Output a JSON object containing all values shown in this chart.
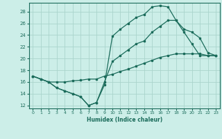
{
  "xlabel": "Humidex (Indice chaleur)",
  "bg_color": "#cceee8",
  "grid_color": "#aad4cc",
  "line_color": "#1a6b5a",
  "xlim": [
    -0.5,
    23.5
  ],
  "ylim": [
    11.5,
    29.5
  ],
  "xticks": [
    0,
    1,
    2,
    3,
    4,
    5,
    6,
    7,
    8,
    9,
    10,
    11,
    12,
    13,
    14,
    15,
    16,
    17,
    18,
    19,
    20,
    21,
    22,
    23
  ],
  "yticks": [
    12,
    14,
    16,
    18,
    20,
    22,
    24,
    26,
    28
  ],
  "line1_x": [
    0,
    1,
    2,
    3,
    4,
    5,
    6,
    7,
    8,
    9,
    10,
    11,
    12,
    13,
    14,
    15,
    16,
    17,
    18,
    19,
    20,
    21,
    22,
    23
  ],
  "line1_y": [
    17.0,
    16.5,
    16.0,
    15.0,
    14.5,
    14.0,
    13.5,
    12.0,
    12.5,
    15.5,
    23.8,
    25.0,
    26.0,
    27.0,
    27.5,
    28.8,
    29.0,
    28.8,
    26.5,
    24.5,
    22.5,
    20.5,
    20.5,
    20.5
  ],
  "line2_x": [
    0,
    1,
    2,
    3,
    4,
    5,
    6,
    7,
    8,
    9,
    10,
    11,
    12,
    13,
    14,
    15,
    16,
    17,
    18,
    19,
    20,
    21,
    22,
    23
  ],
  "line2_y": [
    17.0,
    16.5,
    16.0,
    15.0,
    14.5,
    14.0,
    13.5,
    12.0,
    12.5,
    16.0,
    19.5,
    20.5,
    21.5,
    22.5,
    23.0,
    24.5,
    25.5,
    26.5,
    26.5,
    25.0,
    24.5,
    23.5,
    21.0,
    20.5
  ],
  "line3_x": [
    0,
    1,
    2,
    3,
    4,
    5,
    6,
    7,
    8,
    9,
    10,
    11,
    12,
    13,
    14,
    15,
    16,
    17,
    18,
    19,
    20,
    21,
    22,
    23
  ],
  "line3_y": [
    17.0,
    16.5,
    16.0,
    16.0,
    16.0,
    16.2,
    16.3,
    16.5,
    16.5,
    17.0,
    17.3,
    17.8,
    18.2,
    18.7,
    19.2,
    19.7,
    20.2,
    20.5,
    20.8,
    20.8,
    20.8,
    20.8,
    20.5,
    20.5
  ]
}
